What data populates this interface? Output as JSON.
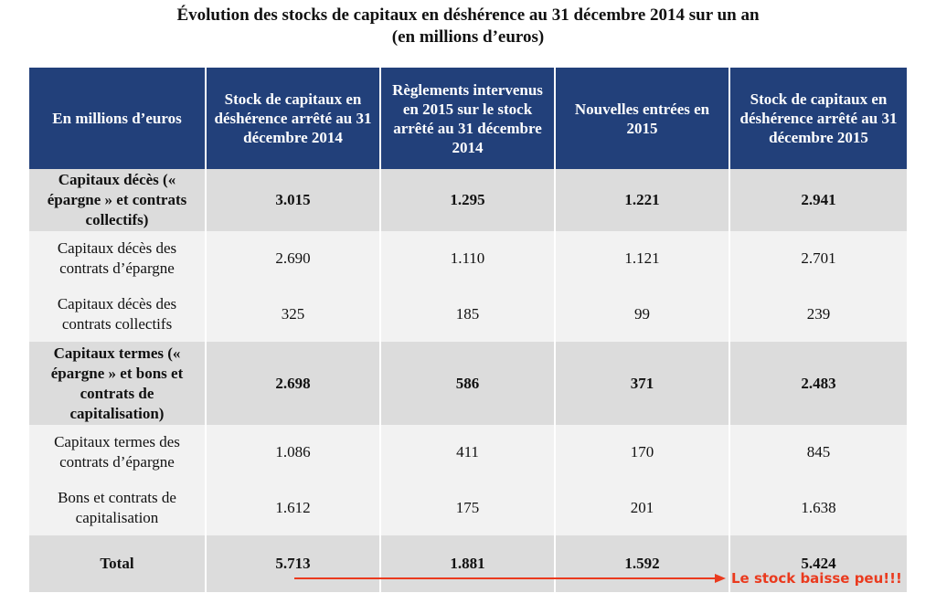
{
  "title": {
    "line1": "Évolution des stocks de capitaux en déshérence au 31 décembre 2014 sur un an",
    "line2": "(en millions d’euros)"
  },
  "table": {
    "headers": [
      "En millions d’euros",
      "Stock de capitaux en déshérence arrêté au 31 décembre 2014",
      "Règlements intervenus en 2015 sur le stock arrêté au 31 décembre 2014",
      "Nouvelles entrées en 2015",
      "Stock de capitaux en déshérence arrêté au 31 décembre 2015"
    ],
    "rows": [
      {
        "label": "Capitaux décès (« épargne » et contrats collectifs)",
        "values": [
          "3.015",
          "1.295",
          "1.221",
          "2.941"
        ]
      },
      {
        "label": "Capitaux décès des contrats d’épargne",
        "values": [
          "2.690",
          "1.110",
          "1.121",
          "2.701"
        ]
      },
      {
        "label": "Capitaux décès des contrats collectifs",
        "values": [
          "325",
          "185",
          "99",
          "239"
        ]
      },
      {
        "label": "Capitaux termes (« épargne » et bons et contrats de capitalisation)",
        "values": [
          "2.698",
          "586",
          "371",
          "2.483"
        ]
      },
      {
        "label": "Capitaux termes des contrats d’épargne",
        "values": [
          "1.086",
          "411",
          "170",
          "845"
        ]
      },
      {
        "label": "Bons et contrats de capitalisation",
        "values": [
          "1.612",
          "175",
          "201",
          "1.638"
        ]
      },
      {
        "label": "Total",
        "values": [
          "5.713",
          "1.881",
          "1.592",
          "5.424"
        ]
      }
    ]
  },
  "annotation": {
    "text": "Le stock baisse peu!!!",
    "color": "#ea3a1e"
  },
  "colors": {
    "header_bg": "#22407a",
    "subtotal_bg": "#dcdcdc",
    "detail_bg": "#f2f2f2"
  }
}
